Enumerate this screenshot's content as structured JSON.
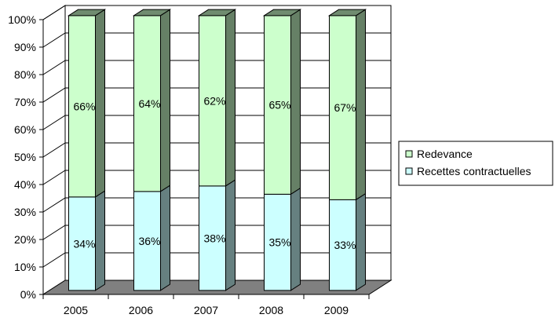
{
  "chart_data": {
    "type": "bar",
    "stacked": true,
    "three_d": true,
    "categories": [
      "2005",
      "2006",
      "2007",
      "2008",
      "2009"
    ],
    "series": [
      {
        "name": "Recettes contractuelles",
        "values": [
          34,
          36,
          38,
          35,
          33
        ],
        "labels": [
          "34%",
          "36%",
          "38%",
          "35%",
          "33%"
        ],
        "color": "#ccffff"
      },
      {
        "name": "Redevance",
        "values": [
          66,
          64,
          62,
          65,
          67
        ],
        "labels": [
          "66%",
          "64%",
          "62%",
          "65%",
          "67%"
        ],
        "color": "#ccffcc"
      }
    ],
    "y_ticks": [
      "0%",
      "10%",
      "20%",
      "30%",
      "40%",
      "50%",
      "60%",
      "70%",
      "80%",
      "90%",
      "100%"
    ],
    "ylim": [
      0,
      100
    ],
    "grid": true,
    "legend_position": "right",
    "legend_order": [
      "Redevance",
      "Recettes contractuelles"
    ],
    "floor_color": "#808080",
    "wall_color": "#ffffff"
  }
}
